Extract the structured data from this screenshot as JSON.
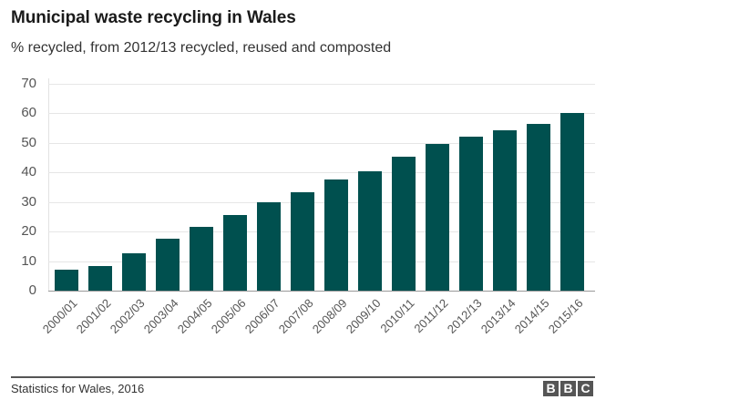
{
  "header": {
    "title": "Municipal waste recycling in Wales",
    "subtitle": "% recycled, from 2012/13 recycled, reused and composted"
  },
  "footer": {
    "source": "Statistics for Wales, 2016",
    "logo_letters": [
      "B",
      "B",
      "C"
    ]
  },
  "colors": {
    "bar": "#00504f",
    "grid": "#e6e6e6",
    "logo_bg": "#555555"
  },
  "chart_data": {
    "type": "bar",
    "title": "Municipal waste recycling in Wales",
    "subtitle": "% recycled, from 2012/13 recycled, reused and composted",
    "xlabel": "",
    "ylabel": "% recycled",
    "ylim": [
      0,
      70
    ],
    "yticks": [
      0,
      10,
      20,
      30,
      40,
      50,
      60,
      70
    ],
    "grid": true,
    "legend": null,
    "categories": [
      "2000/01",
      "2001/02",
      "2002/03",
      "2003/04",
      "2004/05",
      "2005/06",
      "2006/07",
      "2007/08",
      "2008/09",
      "2009/10",
      "2010/11",
      "2011/12",
      "2012/13",
      "2013/14",
      "2014/15",
      "2015/16"
    ],
    "values": [
      7.0,
      8.3,
      12.5,
      17.5,
      21.5,
      25.5,
      30.0,
      33.2,
      37.5,
      40.5,
      45.2,
      49.8,
      52.2,
      54.3,
      56.3,
      60.2
    ],
    "source": "Statistics for Wales, 2016"
  }
}
